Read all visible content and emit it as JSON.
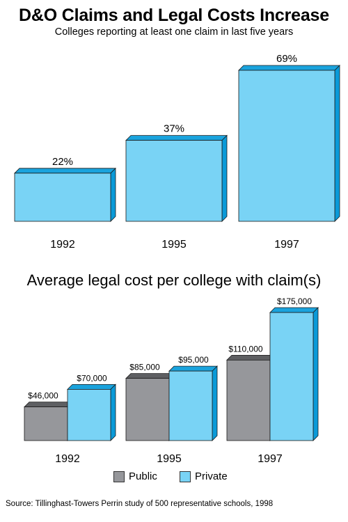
{
  "title": "D&O Claims and Legal Costs Increase",
  "subtitle": "Colleges reporting at least one claim in last five years",
  "source": "Source: Tillinghast-Towers Perrin study of 500 representative schools, 1998",
  "colors": {
    "private_front": "#79d3f5",
    "private_top": "#1aa3dd",
    "private_side": "#0a9ad8",
    "public_front": "#96979b",
    "public_top": "#5e5f62",
    "public_side": "#6d6e71"
  },
  "chart_data": [
    {
      "type": "bar",
      "title": "",
      "categories": [
        "1992",
        "1995",
        "1997"
      ],
      "values": [
        22,
        37,
        69
      ],
      "value_labels": [
        "22%",
        "37%",
        "69%"
      ],
      "unit": "%",
      "ylim": [
        0,
        69
      ]
    },
    {
      "type": "bar",
      "title": "Average legal cost per college with claim(s)",
      "categories": [
        "1992",
        "1995",
        "1997"
      ],
      "series": [
        {
          "name": "Public",
          "values": [
            46000,
            85000,
            110000
          ],
          "labels": [
            "$46,000",
            "$85,000",
            "$110,000"
          ]
        },
        {
          "name": "Private",
          "values": [
            70000,
            95000,
            175000
          ],
          "labels": [
            "$70,000",
            "$95,000",
            "$175,000"
          ]
        }
      ],
      "legend": "bottom-center",
      "ylim": [
        0,
        175000
      ]
    }
  ]
}
